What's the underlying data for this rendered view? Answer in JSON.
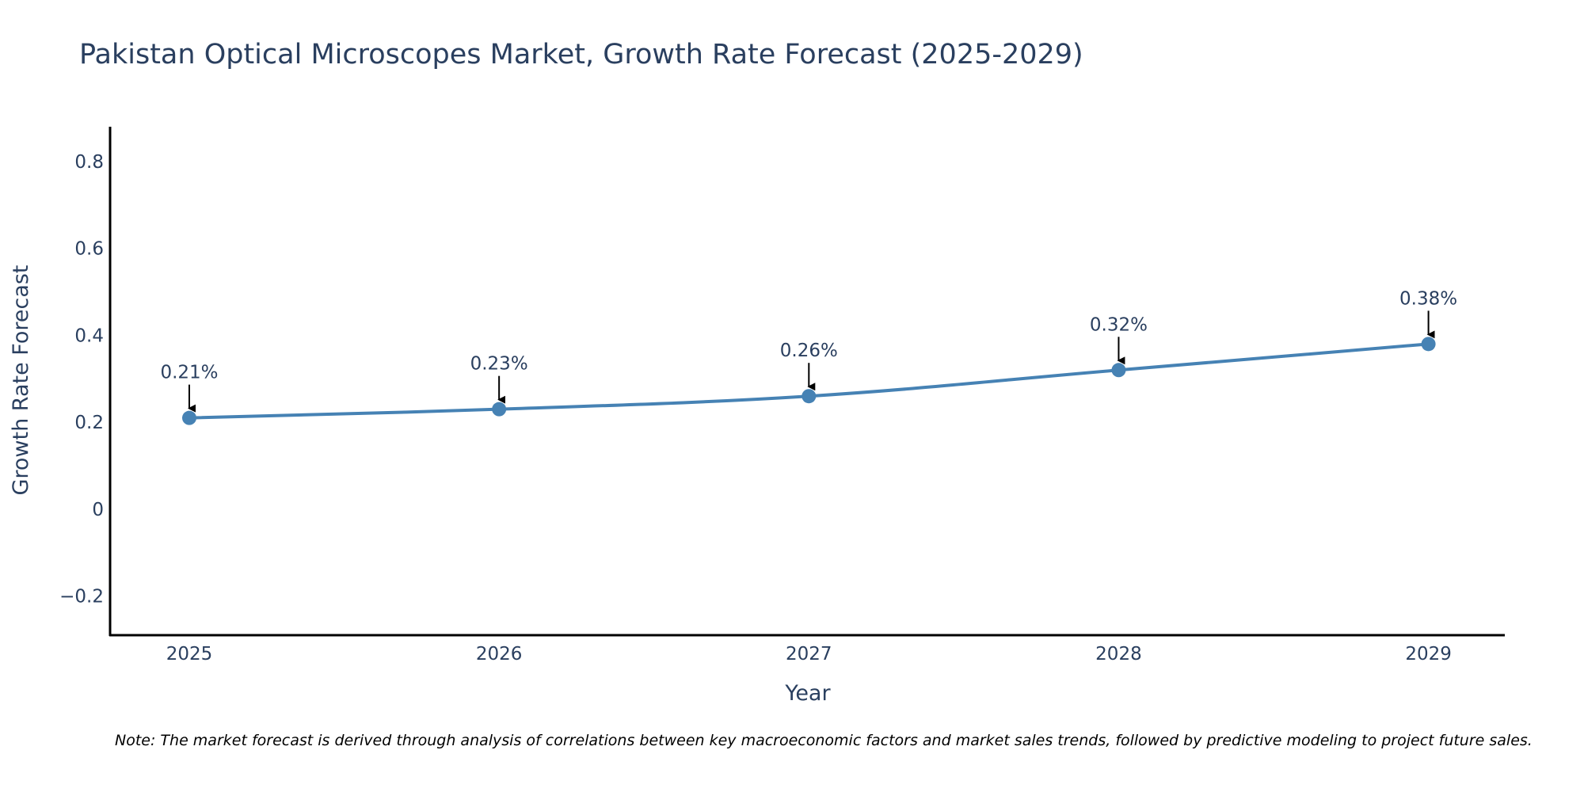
{
  "chart_data": {
    "type": "line",
    "title": "Pakistan Optical Microscopes Market, Growth Rate Forecast (2025-2029)",
    "xlabel": "Year",
    "ylabel": "Growth Rate Forecast",
    "categories": [
      "2025",
      "2026",
      "2027",
      "2028",
      "2029"
    ],
    "values": [
      0.21,
      0.23,
      0.26,
      0.32,
      0.38
    ],
    "point_labels": [
      "0.21%",
      "0.23%",
      "0.26%",
      "0.32%",
      "0.38%"
    ],
    "ylim": [
      -0.29,
      0.88
    ],
    "yticks": [
      -0.2,
      0,
      0.2,
      0.4,
      0.6,
      0.8
    ],
    "ytick_labels": [
      "−0.2",
      "0",
      "0.2",
      "0.4",
      "0.6",
      "0.8"
    ],
    "grid": false,
    "legend": "none",
    "series_color": "#4682b4",
    "note": "Note: The market forecast is derived through analysis of correlations between key macroeconomic factors and market sales trends, followed by predictive modeling to project future sales."
  }
}
